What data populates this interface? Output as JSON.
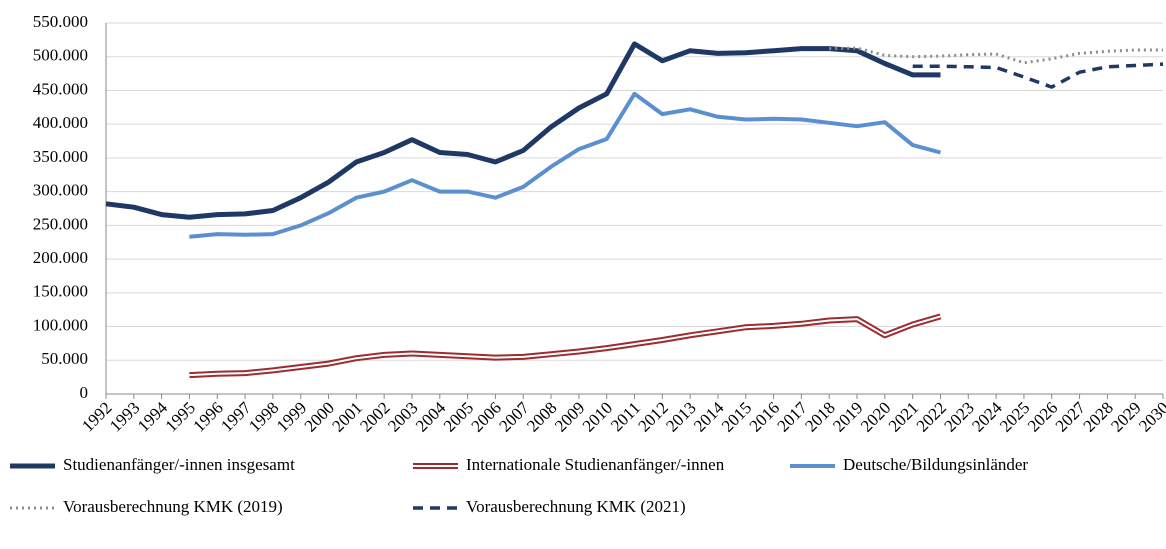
{
  "chart_data": {
    "type": "line",
    "categories": [
      "1992",
      "1993",
      "1994",
      "1995",
      "1996",
      "1997",
      "1998",
      "1999",
      "2000",
      "2001",
      "2002",
      "2003",
      "2004",
      "2005",
      "2006",
      "2007",
      "2008",
      "2009",
      "2010",
      "2011",
      "2012",
      "2013",
      "2014",
      "2015",
      "2016",
      "2017",
      "2018",
      "2019",
      "2020",
      "2021",
      "2022",
      "2023",
      "2024",
      "2025",
      "2026",
      "2027",
      "2028",
      "2029",
      "2030"
    ],
    "ylim": [
      0,
      550000
    ],
    "yticks": [
      0,
      {
        "value": 50000,
        "label": "50.000"
      },
      {
        "value": 100000,
        "label": "100.000"
      },
      {
        "value": 150000,
        "label": "150.000"
      },
      {
        "value": 200000,
        "label": "200.000"
      },
      {
        "value": 250000,
        "label": "250.000"
      },
      {
        "value": 300000,
        "label": "300.000"
      },
      {
        "value": 350000,
        "label": "350.000"
      },
      {
        "value": 400000,
        "label": "400.000"
      },
      {
        "value": 450000,
        "label": "450.000"
      },
      {
        "value": 500000,
        "label": "500.000"
      },
      {
        "value": 550000,
        "label": "550.000"
      }
    ],
    "grid": true,
    "legend": "bottom",
    "series": [
      {
        "name": "Studienanfänger/-innen insgesamt",
        "color": "#1f3864",
        "style": "solid",
        "width": 5,
        "values": [
          282000,
          277000,
          266000,
          262000,
          266000,
          267000,
          272000,
          291000,
          314000,
          344000,
          358000,
          377000,
          358000,
          355000,
          344000,
          361000,
          396000,
          424000,
          445000,
          519000,
          494000,
          509000,
          505000,
          506000,
          509000,
          512000,
          512000,
          509000,
          490000,
          473000,
          473000,
          null,
          null,
          null,
          null,
          null,
          null,
          null,
          null
        ]
      },
      {
        "name": "Internationale Studienanfänger/-innen",
        "color": "#9b2d30",
        "style": "outline",
        "width": 6,
        "values": [
          null,
          null,
          null,
          28000,
          30000,
          31000,
          35000,
          40000,
          45000,
          53000,
          58000,
          60000,
          58000,
          56000,
          54000,
          55000,
          59000,
          63000,
          68000,
          74000,
          80000,
          87000,
          93000,
          99000,
          101000,
          104000,
          109000,
          111000,
          87000,
          103000,
          115000,
          null,
          null,
          null,
          null,
          null,
          null,
          null,
          null
        ]
      },
      {
        "name": "Deutsche/Bildungsinländer",
        "color": "#5b8fd0",
        "style": "solid",
        "width": 4,
        "values": [
          null,
          null,
          null,
          233000,
          237000,
          236000,
          237000,
          250000,
          268000,
          291000,
          300000,
          317000,
          300000,
          300000,
          291000,
          307000,
          337000,
          363000,
          378000,
          445000,
          415000,
          422000,
          411000,
          407000,
          408000,
          407000,
          402000,
          397000,
          403000,
          369000,
          358000,
          null,
          null,
          null,
          null,
          null,
          null,
          null,
          null
        ]
      },
      {
        "name": "Vorausberechnung KMK (2019)",
        "color": "#8c8c8c",
        "style": "dotted",
        "width": 3,
        "values": [
          null,
          null,
          null,
          null,
          null,
          null,
          null,
          null,
          null,
          null,
          null,
          null,
          null,
          null,
          null,
          null,
          null,
          null,
          null,
          null,
          null,
          null,
          null,
          null,
          null,
          null,
          512000,
          513000,
          502000,
          500000,
          501000,
          503000,
          504000,
          491000,
          497000,
          505000,
          508000,
          510000,
          510000
        ]
      },
      {
        "name": "Vorausberechnung KMK (2021)",
        "color": "#1f3864",
        "style": "dashed",
        "width": 3.5,
        "values": [
          null,
          null,
          null,
          null,
          null,
          null,
          null,
          null,
          null,
          null,
          null,
          null,
          null,
          null,
          null,
          null,
          null,
          null,
          null,
          null,
          null,
          null,
          null,
          null,
          null,
          null,
          null,
          null,
          null,
          486000,
          486000,
          485000,
          484000,
          470000,
          455000,
          477000,
          485000,
          487000,
          489000
        ]
      }
    ]
  }
}
